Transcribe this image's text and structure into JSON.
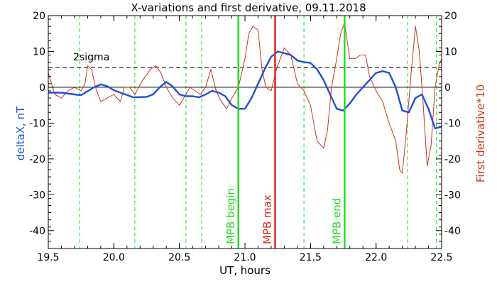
{
  "chart_data": {
    "type": "line",
    "title": "X-variations and first derivative, 09.11.2018",
    "xlabel": "UT, hours",
    "ylabel_left": "deltaX, nT",
    "ylabel_right": "First derivative*10",
    "xlim": [
      19.5,
      22.5
    ],
    "ylim": [
      -45,
      20
    ],
    "xticks": [
      19.5,
      20.0,
      20.5,
      21.0,
      21.5,
      22.0,
      22.5
    ],
    "xtick_labels": [
      "19.5",
      "20.0",
      "20.5",
      "21.0",
      "21.5",
      "22.0",
      "22.5"
    ],
    "yticks": [
      20,
      10,
      0,
      -10,
      -20,
      -30,
      -40
    ],
    "ytick_labels": [
      "20",
      "10",
      "0",
      "-10",
      "-20",
      "-30",
      "-40"
    ],
    "grid": false,
    "colors": {
      "deltaX": "#1f4fd8",
      "derivative": "#d0311f",
      "event_green": "#22dd22",
      "event_red": "#dd2a1a",
      "axis_left_label": "#1f4fd8",
      "axis_right_label": "#d0311f"
    },
    "sigma_line": {
      "y": 5.5,
      "label": "2sigma"
    },
    "zero_line": {
      "y": 0
    },
    "dashed_green_lines_x": [
      19.74,
      20.16,
      20.55,
      20.67,
      21.45,
      22.24,
      22.46
    ],
    "event_lines": [
      {
        "x": 20.95,
        "label": "MPB begin",
        "color": "#22dd22"
      },
      {
        "x": 21.23,
        "label": "MPB max",
        "color": "#dd2a1a"
      },
      {
        "x": 21.76,
        "label": "MPB end",
        "color": "#22dd22"
      }
    ],
    "series": [
      {
        "key": "deltaX",
        "x": [
          19.5,
          19.6,
          19.7,
          19.75,
          19.85,
          19.9,
          19.95,
          20.0,
          20.05,
          20.15,
          20.25,
          20.3,
          20.35,
          20.4,
          20.45,
          20.5,
          20.55,
          20.6,
          20.65,
          20.7,
          20.75,
          20.8,
          20.85,
          20.9,
          20.95,
          21.0,
          21.05,
          21.1,
          21.15,
          21.2,
          21.25,
          21.3,
          21.35,
          21.4,
          21.45,
          21.5,
          21.55,
          21.6,
          21.65,
          21.7,
          21.75,
          21.8,
          21.85,
          21.9,
          21.95,
          22.0,
          22.05,
          22.1,
          22.15,
          22.2,
          22.25,
          22.3,
          22.35,
          22.4,
          22.45,
          22.5
        ],
        "values": [
          -1.5,
          -1.5,
          -2.0,
          -2.2,
          0.0,
          0.8,
          0.3,
          -0.8,
          -1.5,
          -2.8,
          -2.7,
          -2.0,
          0.0,
          1.5,
          0.2,
          -2.0,
          -2.5,
          -2.5,
          -2.8,
          -2.0,
          -1.0,
          -1.5,
          -2.5,
          -5.0,
          -6.0,
          -6.0,
          -3.0,
          1.0,
          5.0,
          8.5,
          10.0,
          9.5,
          9.0,
          7.5,
          7.0,
          6.8,
          5.0,
          2.0,
          -2.0,
          -6.0,
          -6.5,
          -4.5,
          -2.0,
          0.0,
          2.0,
          4.0,
          4.5,
          4.0,
          0.0,
          -6.5,
          -7.0,
          -3.0,
          -2.0,
          -6.0,
          -11.5,
          -11.0
        ]
      },
      {
        "key": "derivative",
        "x": [
          19.5,
          19.55,
          19.6,
          19.65,
          19.7,
          19.75,
          19.78,
          19.8,
          19.83,
          19.86,
          19.9,
          19.95,
          20.0,
          20.05,
          20.08,
          20.12,
          20.16,
          20.22,
          20.28,
          20.32,
          20.36,
          20.4,
          20.45,
          20.5,
          20.55,
          20.58,
          20.62,
          20.66,
          20.7,
          20.74,
          20.78,
          20.82,
          20.86,
          20.9,
          20.95,
          21.0,
          21.03,
          21.06,
          21.1,
          21.13,
          21.16,
          21.2,
          21.24,
          21.3,
          21.35,
          21.4,
          21.45,
          21.5,
          21.55,
          21.6,
          21.63,
          21.66,
          21.7,
          21.73,
          21.76,
          21.78,
          21.8,
          21.84,
          21.88,
          21.92,
          21.95,
          22.0,
          22.05,
          22.1,
          22.15,
          22.18,
          22.2,
          22.23,
          22.27,
          22.3,
          22.33,
          22.36,
          22.39,
          22.42,
          22.45,
          22.48,
          22.5
        ],
        "values": [
          4,
          -2,
          -3,
          -1,
          0,
          -1,
          1,
          6,
          5,
          0,
          -4,
          -3,
          -2,
          -4,
          0,
          0,
          -2,
          2,
          5,
          6,
          4,
          0,
          -3,
          -5,
          -2,
          0,
          -1,
          -2,
          0,
          5,
          -1,
          -4,
          -6,
          -3,
          0,
          8,
          15,
          17,
          16,
          5,
          0,
          -1,
          5,
          11,
          9,
          1,
          -1,
          -5,
          -15,
          -17,
          -12,
          0,
          8,
          15,
          18,
          13,
          8,
          8,
          9,
          9,
          3,
          -1,
          -4,
          -10,
          -15,
          -23,
          -24,
          -13,
          5,
          17,
          10,
          -5,
          -22,
          -16,
          0,
          6,
          8
        ]
      }
    ]
  }
}
